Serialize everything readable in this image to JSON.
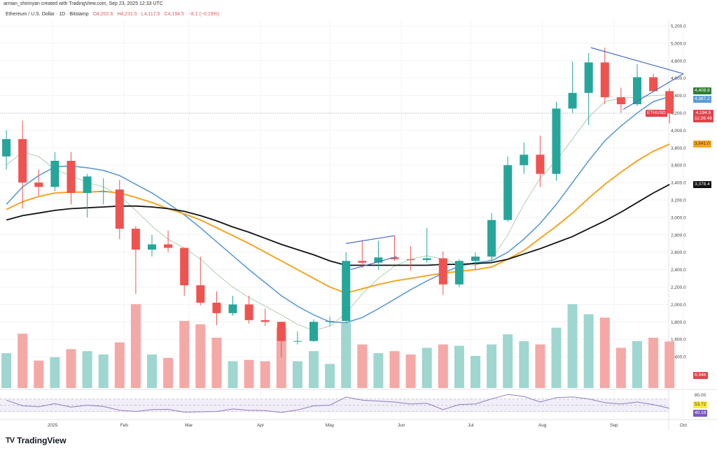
{
  "header": {
    "credit": "arman_shirinyan created with TradingView.com, Sep 23, 2025 12:33 UTC",
    "symbol_line": "Ethereum / U.S. Dollar · 1D · Bitstamp",
    "open": "O4,202.6",
    "high": "H4,231.5",
    "low": "L4,117.5",
    "close": "C4,194.5",
    "change": "−8.1 (−0.19%)"
  },
  "labels": {
    "ma_fast": {
      "value": "4,408.8",
      "color": "#2e7d32"
    },
    "ma_blue": {
      "value": "4,387.2",
      "color": "#5b9bd5"
    },
    "symbol_tag": "ETHUSD",
    "last_price": "4,194.5",
    "countdown": "11:26:49",
    "ma_orange": {
      "value": "3,841.0",
      "color": "#f5a623"
    },
    "ma_black": {
      "value": "3,378.4",
      "color": "#111111"
    },
    "volume": "6.94K",
    "rsi_axis": "80.00",
    "rsi_ma": "53.72",
    "rsi": "40.19"
  },
  "logo": "TradingView",
  "colors": {
    "up": "#26a69a",
    "down": "#ef5350",
    "drawing": "#4a6cc4",
    "rsi": "#8e7cc3",
    "rsi_bg": "#ede7f6"
  },
  "chart_data": {
    "type": "candlestick",
    "interval_shown": "1D",
    "price_axis": [
      "5,200.0",
      "5,000.0",
      "4,800.0",
      "4,600.0",
      "4,400.0",
      "4,200.0",
      "4,000.0",
      "3,800.0",
      "3,600.0",
      "3,400.0",
      "3,200.0",
      "3,000.0",
      "2,800.0",
      "2,600.0",
      "2,400.0",
      "2,200.0",
      "2,000.0",
      "1,800.0",
      "1,600.0",
      "1,400.0"
    ],
    "ylim": [
      1300,
      5300
    ],
    "time_axis": [
      {
        "label": "2025",
        "date": "2025-01-01"
      },
      {
        "label": "Feb",
        "date": "2025-02-01"
      },
      {
        "label": "Mar",
        "date": "2025-03-01"
      },
      {
        "label": "Apr",
        "date": "2025-04-01"
      },
      {
        "label": "May",
        "date": "2025-05-01"
      },
      {
        "label": "Jun",
        "date": "2025-06-01"
      },
      {
        "label": "Jul",
        "date": "2025-07-01"
      },
      {
        "label": "Aug",
        "date": "2025-08-01"
      },
      {
        "label": "Sep",
        "date": "2025-09-01"
      },
      {
        "label": "Oct",
        "date": "2025-10-01"
      }
    ],
    "candles": [
      {
        "d": "2024-12-09",
        "o": 3700,
        "h": 4000,
        "l": 3550,
        "c": 3900,
        "v": 5.2,
        "ma20": 3600,
        "ma50": 3150,
        "ma100": 3090,
        "ma200": 2970,
        "rsi": 66
      },
      {
        "d": "2024-12-16",
        "o": 3900,
        "h": 4110,
        "l": 3100,
        "c": 3400,
        "v": 8.1,
        "ma20": 3750,
        "ma50": 3350,
        "ma100": 3180,
        "ma200": 3020,
        "rsi": 48
      },
      {
        "d": "2024-12-23",
        "o": 3400,
        "h": 3550,
        "l": 3250,
        "c": 3350,
        "v": 4.1,
        "ma20": 3700,
        "ma50": 3480,
        "ma100": 3240,
        "ma200": 3050,
        "rsi": 45
      },
      {
        "d": "2024-12-30",
        "o": 3350,
        "h": 3750,
        "l": 3300,
        "c": 3650,
        "v": 4.6,
        "ma20": 3550,
        "ma50": 3580,
        "ma100": 3280,
        "ma200": 3080,
        "rsi": 55
      },
      {
        "d": "2025-01-06",
        "o": 3650,
        "h": 3750,
        "l": 3150,
        "c": 3280,
        "v": 5.8,
        "ma20": 3480,
        "ma50": 3590,
        "ma100": 3290,
        "ma200": 3100,
        "rsi": 44
      },
      {
        "d": "2025-01-13",
        "o": 3280,
        "h": 3500,
        "l": 3000,
        "c": 3470,
        "v": 5.5,
        "ma20": 3400,
        "ma50": 3570,
        "ma100": 3290,
        "ma200": 3110,
        "rsi": 50
      },
      {
        "d": "2025-01-20",
        "o": 3300,
        "h": 3450,
        "l": 3150,
        "c": 3300,
        "v": 5.0,
        "ma20": 3350,
        "ma50": 3540,
        "ma100": 3300,
        "ma200": 3120,
        "rsi": 46
      },
      {
        "d": "2025-01-27",
        "o": 3320,
        "h": 3430,
        "l": 2750,
        "c": 2870,
        "v": 6.8,
        "ma20": 3250,
        "ma50": 3480,
        "ma100": 3280,
        "ma200": 3130,
        "rsi": 34
      },
      {
        "d": "2025-02-03",
        "o": 2870,
        "h": 2900,
        "l": 2120,
        "c": 2630,
        "v": 12.5,
        "ma20": 3080,
        "ma50": 3380,
        "ma100": 3230,
        "ma200": 3130,
        "rsi": 30
      },
      {
        "d": "2025-02-10",
        "o": 2630,
        "h": 2800,
        "l": 2550,
        "c": 2690,
        "v": 5.0,
        "ma20": 2900,
        "ma50": 3280,
        "ma100": 3170,
        "ma200": 3120,
        "rsi": 36
      },
      {
        "d": "2025-02-17",
        "o": 2690,
        "h": 2850,
        "l": 2600,
        "c": 2650,
        "v": 4.5,
        "ma20": 2750,
        "ma50": 3160,
        "ma100": 3100,
        "ma200": 3100,
        "rsi": 37
      },
      {
        "d": "2025-02-24",
        "o": 2650,
        "h": 2650,
        "l": 2100,
        "c": 2220,
        "v": 10.0,
        "ma20": 2650,
        "ma50": 3030,
        "ma100": 3040,
        "ma200": 3070,
        "rsi": 28
      },
      {
        "d": "2025-03-03",
        "o": 2220,
        "h": 2550,
        "l": 1990,
        "c": 2020,
        "v": 9.5,
        "ma20": 2520,
        "ma50": 2880,
        "ma100": 2970,
        "ma200": 3020,
        "rsi": 29
      },
      {
        "d": "2025-03-10",
        "o": 2020,
        "h": 2150,
        "l": 1760,
        "c": 1900,
        "v": 7.5,
        "ma20": 2350,
        "ma50": 2720,
        "ma100": 2880,
        "ma200": 2960,
        "rsi": 30
      },
      {
        "d": "2025-03-17",
        "o": 1900,
        "h": 2100,
        "l": 1870,
        "c": 2000,
        "v": 4.0,
        "ma20": 2200,
        "ma50": 2560,
        "ma100": 2790,
        "ma200": 2890,
        "rsi": 38
      },
      {
        "d": "2025-03-24",
        "o": 2000,
        "h": 2100,
        "l": 1780,
        "c": 1820,
        "v": 4.2,
        "ma20": 2080,
        "ma50": 2400,
        "ma100": 2700,
        "ma200": 2830,
        "rsi": 34
      },
      {
        "d": "2025-03-31",
        "o": 1820,
        "h": 1950,
        "l": 1750,
        "c": 1800,
        "v": 4.0,
        "ma20": 1980,
        "ma50": 2250,
        "ma100": 2600,
        "ma200": 2760,
        "rsi": 33
      },
      {
        "d": "2025-04-07",
        "o": 1800,
        "h": 1800,
        "l": 1390,
        "c": 1580,
        "v": 9.0,
        "ma20": 1880,
        "ma50": 2100,
        "ma100": 2500,
        "ma200": 2690,
        "rsi": 27
      },
      {
        "d": "2025-04-14",
        "o": 1580,
        "h": 1690,
        "l": 1540,
        "c": 1580,
        "v": 4.0,
        "ma20": 1770,
        "ma50": 1980,
        "ma100": 2400,
        "ma200": 2630,
        "rsi": 35
      },
      {
        "d": "2025-04-21",
        "o": 1580,
        "h": 1830,
        "l": 1570,
        "c": 1800,
        "v": 5.5,
        "ma20": 1700,
        "ma50": 1880,
        "ma100": 2300,
        "ma200": 2570,
        "rsi": 48
      },
      {
        "d": "2025-04-28",
        "o": 1800,
        "h": 1860,
        "l": 1750,
        "c": 1810,
        "v": 3.6,
        "ma20": 1750,
        "ma50": 1800,
        "ma100": 2200,
        "ma200": 2500,
        "rsi": 50
      },
      {
        "d": "2025-05-05",
        "o": 1810,
        "h": 2600,
        "l": 1790,
        "c": 2500,
        "v": 9.8,
        "ma20": 1900,
        "ma50": 1790,
        "ma100": 2130,
        "ma200": 2450,
        "rsi": 76
      },
      {
        "d": "2025-05-12",
        "o": 2500,
        "h": 2740,
        "l": 2420,
        "c": 2480,
        "v": 6.5,
        "ma20": 2120,
        "ma50": 1850,
        "ma100": 2180,
        "ma200": 2450,
        "rsi": 66
      },
      {
        "d": "2025-05-19",
        "o": 2480,
        "h": 2730,
        "l": 2400,
        "c": 2540,
        "v": 5.2,
        "ma20": 2300,
        "ma50": 1950,
        "ma100": 2230,
        "ma200": 2450,
        "rsi": 63
      },
      {
        "d": "2025-05-26",
        "o": 2540,
        "h": 2790,
        "l": 2500,
        "c": 2520,
        "v": 5.5,
        "ma20": 2440,
        "ma50": 2060,
        "ma100": 2270,
        "ma200": 2450,
        "rsi": 60
      },
      {
        "d": "2025-06-02",
        "o": 2520,
        "h": 2670,
        "l": 2390,
        "c": 2510,
        "v": 5.0,
        "ma20": 2520,
        "ma50": 2170,
        "ma100": 2300,
        "ma200": 2450,
        "rsi": 54
      },
      {
        "d": "2025-06-09",
        "o": 2510,
        "h": 2880,
        "l": 2480,
        "c": 2530,
        "v": 6.0,
        "ma20": 2560,
        "ma50": 2270,
        "ma100": 2330,
        "ma200": 2450,
        "rsi": 56
      },
      {
        "d": "2025-06-16",
        "o": 2530,
        "h": 2610,
        "l": 2110,
        "c": 2230,
        "v": 6.5,
        "ma20": 2520,
        "ma50": 2360,
        "ma100": 2360,
        "ma200": 2460,
        "rsi": 36
      },
      {
        "d": "2025-06-23",
        "o": 2230,
        "h": 2520,
        "l": 2200,
        "c": 2500,
        "v": 6.3,
        "ma20": 2460,
        "ma50": 2440,
        "ma100": 2380,
        "ma200": 2460,
        "rsi": 52
      },
      {
        "d": "2025-06-30",
        "o": 2500,
        "h": 2600,
        "l": 2400,
        "c": 2550,
        "v": 4.8,
        "ma20": 2450,
        "ma50": 2480,
        "ma100": 2400,
        "ma200": 2470,
        "rsi": 54
      },
      {
        "d": "2025-07-07",
        "o": 2550,
        "h": 3050,
        "l": 2500,
        "c": 2970,
        "v": 6.5,
        "ma20": 2520,
        "ma50": 2500,
        "ma100": 2430,
        "ma200": 2480,
        "rsi": 70
      },
      {
        "d": "2025-07-14",
        "o": 2970,
        "h": 3700,
        "l": 2950,
        "c": 3600,
        "v": 8.0,
        "ma20": 2800,
        "ma50": 2600,
        "ma100": 2520,
        "ma200": 2520,
        "rsi": 84
      },
      {
        "d": "2025-07-21",
        "o": 3600,
        "h": 3860,
        "l": 3500,
        "c": 3720,
        "v": 7.0,
        "ma20": 3150,
        "ma50": 2750,
        "ma100": 2620,
        "ma200": 2580,
        "rsi": 78
      },
      {
        "d": "2025-07-28",
        "o": 3720,
        "h": 3940,
        "l": 3350,
        "c": 3500,
        "v": 6.5,
        "ma20": 3450,
        "ma50": 2930,
        "ma100": 2760,
        "ma200": 2640,
        "rsi": 60
      },
      {
        "d": "2025-08-04",
        "o": 3500,
        "h": 4330,
        "l": 3420,
        "c": 4250,
        "v": 9.0,
        "ma20": 3650,
        "ma50": 3150,
        "ma100": 2900,
        "ma200": 2710,
        "rsi": 74
      },
      {
        "d": "2025-08-11",
        "o": 4250,
        "h": 4790,
        "l": 4200,
        "c": 4430,
        "v": 12.5,
        "ma20": 3900,
        "ma50": 3400,
        "ma100": 3050,
        "ma200": 2780,
        "rsi": 76
      },
      {
        "d": "2025-08-18",
        "o": 4430,
        "h": 4890,
        "l": 4060,
        "c": 4780,
        "v": 11.0,
        "ma20": 4150,
        "ma50": 3650,
        "ma100": 3220,
        "ma200": 2870,
        "rsi": 70
      },
      {
        "d": "2025-08-25",
        "o": 4780,
        "h": 4950,
        "l": 4300,
        "c": 4380,
        "v": 10.5,
        "ma20": 4330,
        "ma50": 3880,
        "ma100": 3380,
        "ma200": 2960,
        "rsi": 58
      },
      {
        "d": "2025-09-01",
        "o": 4380,
        "h": 4490,
        "l": 4200,
        "c": 4300,
        "v": 6.0,
        "ma20": 4370,
        "ma50": 4050,
        "ma100": 3520,
        "ma200": 3060,
        "rsi": 54
      },
      {
        "d": "2025-09-08",
        "o": 4300,
        "h": 4760,
        "l": 4280,
        "c": 4610,
        "v": 7.0,
        "ma20": 4380,
        "ma50": 4200,
        "ma100": 3650,
        "ma200": 3170,
        "rsi": 60
      },
      {
        "d": "2025-09-15",
        "o": 4610,
        "h": 4650,
        "l": 4450,
        "c": 4450,
        "v": 7.5,
        "ma20": 4400,
        "ma50": 4330,
        "ma100": 3760,
        "ma200": 3280,
        "rsi": 52
      },
      {
        "d": "2025-09-22",
        "o": 4450,
        "h": 4480,
        "l": 4080,
        "c": 4194.5,
        "v": 6.94,
        "ma20": 4408.8,
        "ma50": 4387.2,
        "ma100": 3841.0,
        "ma200": 3378.4,
        "rsi": 40.19
      }
    ],
    "drawings": {
      "triangle_upper": [
        {
          "d": "2025-08-22",
          "p": 4950
        },
        {
          "d": "2025-10-01",
          "p": 4650
        }
      ],
      "triangle_lower": [
        {
          "d": "2025-09-05",
          "p": 4240
        },
        {
          "d": "2025-10-01",
          "p": 4650
        }
      ],
      "channel_upper": [
        {
          "d": "2025-05-08",
          "p": 2700
        },
        {
          "d": "2025-05-29",
          "p": 2790
        }
      ],
      "channel_lower": [
        {
          "d": "2025-05-10",
          "p": 2400
        },
        {
          "d": "2025-05-30",
          "p": 2550
        }
      ]
    },
    "rsi_levels": [
      70,
      50,
      30
    ]
  }
}
